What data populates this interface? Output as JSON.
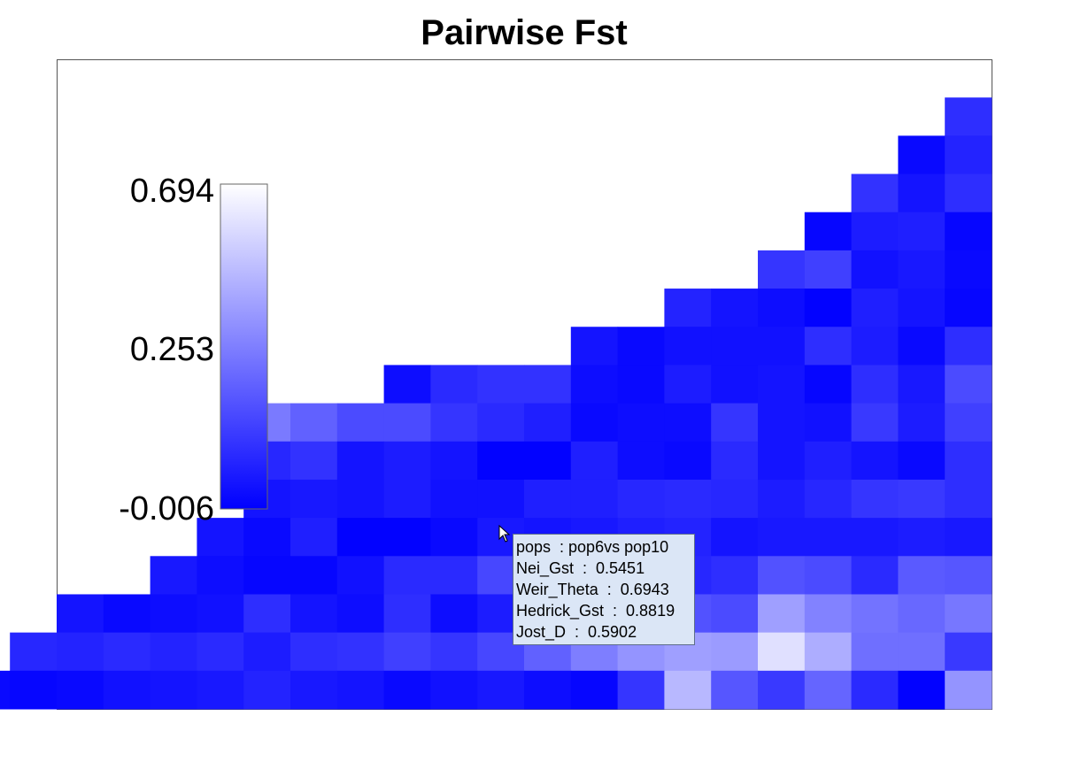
{
  "chart_data": {
    "type": "heatmap",
    "title": "Pairwise Fst",
    "color_scale": {
      "min": -0.006,
      "mid": 0.253,
      "max": 0.694,
      "min_label": "-0.006",
      "mid_label": "0.253",
      "max_label": "0.694",
      "min_color": "#0000ff",
      "max_color": "#ffffff"
    },
    "matrix": [
      [
        0.12
      ],
      [
        0.02,
        0.09
      ],
      [
        0.13,
        0.05,
        0.12
      ],
      [
        0.01,
        0.07,
        0.08,
        0.01
      ],
      [
        0.14,
        0.17,
        0.04,
        0.06,
        0.02
      ],
      [
        0.09,
        0.05,
        0.03,
        0.0,
        0.08,
        0.05,
        0.01
      ],
      [
        0.05,
        0.02,
        0.04,
        0.04,
        0.04,
        0.12,
        0.07,
        0.02,
        0.12
      ],
      [
        0.03,
        0.11,
        0.13,
        0.13,
        0.03,
        0.02,
        0.07,
        0.04,
        0.05,
        0.01,
        0.12,
        0.06,
        0.2
      ],
      [
        0.33,
        0.26,
        0.2,
        0.2,
        0.14,
        0.11,
        0.08,
        0.02,
        0.03,
        0.03,
        0.14,
        0.05,
        0.04,
        0.15,
        0.07,
        0.17
      ],
      [
        0.1,
        0.13,
        0.05,
        0.07,
        0.05,
        0.0,
        0.0,
        0.08,
        0.03,
        0.02,
        0.11,
        0.05,
        0.08,
        0.05,
        0.02,
        0.12
      ],
      [
        0.05,
        0.06,
        0.05,
        0.07,
        0.04,
        0.04,
        0.08,
        0.08,
        0.1,
        0.11,
        0.1,
        0.07,
        0.1,
        0.14,
        0.15,
        0.12
      ],
      [
        0.05,
        0.02,
        0.08,
        0.0,
        0.0,
        0.02,
        0.06,
        0.05,
        0.06,
        0.08,
        0.09,
        0.05,
        0.06,
        0.06,
        0.06,
        0.07,
        0.06
      ],
      [
        0.06,
        0.03,
        0.01,
        0.01,
        0.04,
        0.11,
        0.11,
        0.19,
        0.03,
        0.07,
        0.06,
        0.1,
        0.12,
        0.22,
        0.2,
        0.11,
        0.24,
        0.23
      ],
      [
        0.05,
        0.02,
        0.03,
        0.04,
        0.12,
        0.05,
        0.03,
        0.12,
        0.03,
        0.07,
        0.1,
        0.2,
        0.25,
        0.22,
        0.2,
        0.43,
        0.35,
        0.31,
        0.28,
        0.32
      ],
      [
        0.1,
        0.09,
        0.11,
        0.09,
        0.11,
        0.07,
        0.12,
        0.13,
        0.17,
        0.14,
        0.19,
        0.26,
        0.34,
        0.4,
        0.43,
        0.42,
        0.61,
        0.47,
        0.3,
        0.3,
        0.15
      ],
      [
        0.02,
        0.01,
        0.02,
        0.04,
        0.05,
        0.06,
        0.09,
        0.06,
        0.05,
        0.02,
        0.04,
        0.06,
        0.03,
        0.01,
        0.14,
        0.5,
        0.23,
        0.15,
        0.27,
        0.11,
        0.0,
        0.4
      ]
    ],
    "grid": false,
    "legend": "left colorbar"
  },
  "tooltip": {
    "lines": [
      "pops  : pop6vs pop10",
      "Nei_Gst  :  0.5451",
      "Weir_Theta  :  0.6943",
      "Hedrick_Gst  :  0.8819",
      "Jost_D  :  0.5902"
    ]
  },
  "colors": {
    "low": "#0000ff",
    "high": "#ffffff",
    "tooltip_bg": "#dbe6f6",
    "tooltip_border": "#5d6d8a"
  },
  "icons": {
    "cursor": "mouse-pointer-icon"
  }
}
